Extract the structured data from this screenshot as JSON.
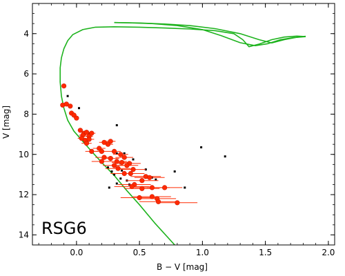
{
  "chart_data": {
    "type": "scatter",
    "xlabel": "B − V [mag]",
    "ylabel": "V [mag]",
    "annotation": "RSG6",
    "xlim": [
      -0.35,
      2.05
    ],
    "ylim": [
      14.5,
      2.5
    ],
    "y_inverted": true,
    "grid": false,
    "x_ticks": [
      0.0,
      0.5,
      1.0,
      1.5,
      2.0
    ],
    "x_tick_labels": [
      "0.0",
      "0.5",
      "1.0",
      "1.5",
      "2.0"
    ],
    "y_ticks": [
      4,
      6,
      8,
      10,
      12,
      14
    ],
    "y_tick_labels": [
      "4",
      "6",
      "8",
      "10",
      "12",
      "14"
    ],
    "colors": {
      "isochrone": "#1db31d",
      "members": "#ff2a00",
      "field": "#000000",
      "axes": "#000000"
    },
    "series": [
      {
        "kind": "line",
        "points": [
          [
            0.78,
            14.5
          ],
          [
            0.62,
            13.4
          ],
          [
            0.5,
            12.5
          ],
          [
            0.4,
            11.8
          ],
          [
            0.3,
            11.05
          ],
          [
            0.2,
            10.4
          ],
          [
            0.12,
            9.85
          ],
          [
            0.05,
            9.35
          ],
          [
            -0.02,
            8.85
          ],
          [
            -0.07,
            8.3
          ],
          [
            -0.1,
            7.7
          ],
          [
            -0.12,
            7.1
          ],
          [
            -0.13,
            6.4
          ],
          [
            -0.13,
            5.7
          ],
          [
            -0.12,
            5.2
          ],
          [
            -0.1,
            4.75
          ],
          [
            -0.07,
            4.35
          ],
          [
            -0.03,
            4.05
          ],
          [
            0.05,
            3.8
          ],
          [
            0.15,
            3.68
          ],
          [
            0.3,
            3.66
          ],
          [
            0.5,
            3.68
          ],
          [
            0.7,
            3.72
          ],
          [
            0.9,
            3.77
          ],
          [
            1.1,
            3.85
          ],
          [
            1.25,
            4.0
          ],
          [
            1.32,
            4.3
          ],
          [
            1.37,
            4.65
          ],
          [
            1.45,
            4.52
          ],
          [
            1.55,
            4.3
          ],
          [
            1.65,
            4.17
          ],
          [
            1.75,
            4.12
          ],
          [
            1.82,
            4.15
          ]
        ]
      },
      {
        "kind": "line",
        "points": [
          [
            1.82,
            4.15
          ],
          [
            1.72,
            4.2
          ],
          [
            1.62,
            4.3
          ],
          [
            1.52,
            4.5
          ],
          [
            1.42,
            4.6
          ],
          [
            1.3,
            4.45
          ],
          [
            1.15,
            4.1
          ],
          [
            1.0,
            3.8
          ],
          [
            0.8,
            3.6
          ],
          [
            0.6,
            3.5
          ],
          [
            0.4,
            3.46
          ],
          [
            0.3,
            3.45
          ]
        ]
      },
      {
        "kind": "line",
        "points": [
          [
            0.3,
            3.45
          ],
          [
            0.5,
            3.47
          ],
          [
            0.7,
            3.52
          ],
          [
            0.9,
            3.6
          ],
          [
            1.1,
            3.75
          ],
          [
            1.3,
            4.0
          ],
          [
            1.45,
            4.3
          ],
          [
            1.55,
            4.46
          ],
          [
            1.65,
            4.3
          ],
          [
            1.75,
            4.18
          ],
          [
            1.82,
            4.13
          ]
        ]
      },
      {
        "kind": "members",
        "points": [
          [
            -0.1,
            6.6,
            0.0
          ],
          [
            -0.11,
            7.55,
            0.0
          ],
          [
            -0.08,
            7.5,
            0.0
          ],
          [
            -0.05,
            7.6,
            0.0
          ],
          [
            -0.04,
            7.95,
            0.02
          ],
          [
            -0.02,
            8.05,
            0.02
          ],
          [
            0.0,
            8.2,
            0.02
          ],
          [
            0.03,
            8.8,
            0.02
          ],
          [
            0.06,
            8.95,
            0.02
          ],
          [
            0.08,
            8.9,
            0.02
          ],
          [
            0.05,
            9.05,
            0.03
          ],
          [
            0.1,
            9.1,
            0.03
          ],
          [
            0.12,
            8.95,
            0.03
          ],
          [
            0.04,
            9.2,
            0.03
          ],
          [
            0.07,
            9.3,
            0.03
          ],
          [
            0.08,
            9.45,
            0.04
          ],
          [
            0.1,
            9.25,
            0.04
          ],
          [
            0.22,
            9.4,
            0.04
          ],
          [
            0.27,
            9.35,
            0.04
          ],
          [
            0.25,
            9.5,
            0.04
          ],
          [
            0.18,
            9.7,
            0.05
          ],
          [
            0.2,
            9.85,
            0.05
          ],
          [
            0.12,
            9.85,
            0.05
          ],
          [
            0.3,
            9.85,
            0.05
          ],
          [
            0.35,
            10.0,
            0.06
          ],
          [
            0.38,
            10.15,
            0.07
          ],
          [
            0.22,
            10.15,
            0.07
          ],
          [
            0.27,
            10.2,
            0.07
          ],
          [
            0.2,
            10.35,
            0.08
          ],
          [
            0.32,
            10.35,
            0.08
          ],
          [
            0.36,
            10.4,
            0.08
          ],
          [
            0.42,
            10.45,
            0.09
          ],
          [
            0.4,
            10.55,
            0.09
          ],
          [
            0.3,
            10.55,
            0.09
          ],
          [
            0.33,
            10.7,
            0.1
          ],
          [
            0.45,
            10.75,
            0.1
          ],
          [
            0.38,
            10.95,
            0.11
          ],
          [
            0.43,
            10.95,
            0.11
          ],
          [
            0.55,
            11.1,
            0.12
          ],
          [
            0.58,
            11.15,
            0.12
          ],
          [
            0.52,
            11.3,
            0.13
          ],
          [
            0.46,
            11.5,
            0.13
          ],
          [
            0.44,
            11.6,
            0.14
          ],
          [
            0.6,
            11.65,
            0.14
          ],
          [
            0.52,
            11.7,
            0.14
          ],
          [
            0.7,
            11.65,
            0.14
          ],
          [
            0.6,
            12.1,
            0.15
          ],
          [
            0.5,
            12.15,
            0.15
          ],
          [
            0.64,
            12.2,
            0.15
          ],
          [
            0.8,
            12.4,
            0.16
          ],
          [
            0.65,
            12.35,
            0.15
          ]
        ]
      },
      {
        "kind": "field",
        "points": [
          [
            -0.07,
            7.1
          ],
          [
            0.02,
            7.7
          ],
          [
            0.32,
            8.55
          ],
          [
            0.1,
            8.95
          ],
          [
            0.22,
            9.35
          ],
          [
            0.32,
            9.95
          ],
          [
            0.38,
            9.95
          ],
          [
            0.45,
            10.25
          ],
          [
            0.35,
            10.45
          ],
          [
            0.3,
            10.6
          ],
          [
            0.25,
            10.65
          ],
          [
            0.36,
            10.8
          ],
          [
            0.28,
            10.85
          ],
          [
            0.3,
            11.0
          ],
          [
            0.35,
            11.2
          ],
          [
            0.4,
            11.3
          ],
          [
            0.32,
            11.45
          ],
          [
            0.42,
            11.5
          ],
          [
            0.26,
            11.65
          ],
          [
            0.55,
            10.75
          ],
          [
            0.6,
            11.15
          ],
          [
            0.63,
            11.25
          ],
          [
            0.52,
            11.35
          ],
          [
            0.78,
            10.85
          ],
          [
            0.86,
            11.65
          ],
          [
            0.99,
            9.65
          ],
          [
            1.18,
            10.1
          ]
        ]
      }
    ]
  }
}
